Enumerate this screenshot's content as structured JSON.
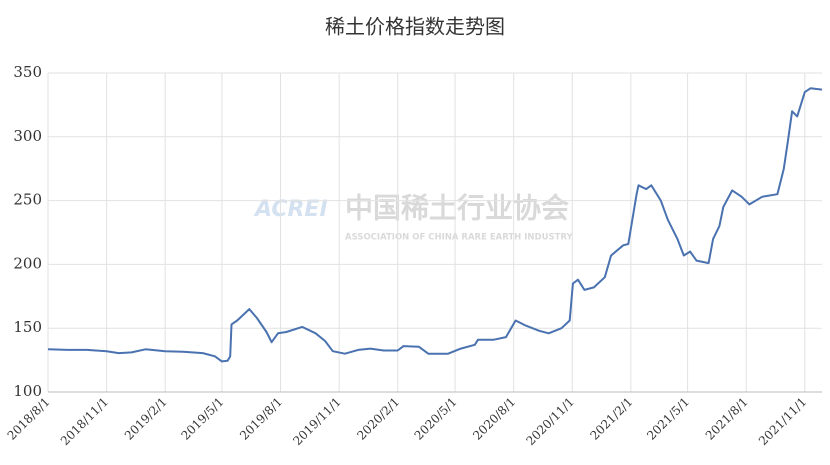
{
  "chart_data": {
    "type": "line",
    "title": "稀土价格指数走势图",
    "watermark": {
      "logo": "ACREI",
      "name": "中国稀土行业协会",
      "english": "ASSOCIATION OF CHINA RARE EARTH INDUSTRY"
    },
    "x": [
      "2018/8/1",
      "2018/9/1",
      "2018/10/1",
      "2018/11/1",
      "2018/11/20",
      "2018/12/10",
      "2019/1/1",
      "2019/2/1",
      "2019/3/1",
      "2019/4/1",
      "2019/4/20",
      "2019/5/1",
      "2019/5/10",
      "2019/5/14",
      "2019/5/16",
      "2019/5/25",
      "2019/6/13",
      "2019/6/25",
      "2019/7/10",
      "2019/7/18",
      "2019/7/28",
      "2019/8/10",
      "2019/9/4",
      "2019/9/25",
      "2019/10/10",
      "2019/10/22",
      "2019/11/10",
      "2019/12/1",
      "2019/12/20",
      "2020/1/10",
      "2020/2/1",
      "2020/2/10",
      "2020/3/5",
      "2020/3/20",
      "2020/4/20",
      "2020/5/10",
      "2020/6/1",
      "2020/6/6",
      "2020/7/1",
      "2020/7/20",
      "2020/8/4",
      "2020/8/20",
      "2020/9/10",
      "2020/9/25",
      "2020/10/15",
      "2020/10/28",
      "2020/11/2",
      "2020/11/10",
      "2020/11/20",
      "2020/12/5",
      "2020/12/22",
      "2021/1/1",
      "2021/1/20",
      "2021/1/28",
      "2021/2/10",
      "2021/2/13",
      "2021/2/25",
      "2021/3/5",
      "2021/3/20",
      "2021/3/31",
      "2021/4/15",
      "2021/4/25",
      "2021/5/5",
      "2021/5/15",
      "2021/6/3",
      "2021/6/10",
      "2021/6/20",
      "2021/6/26",
      "2021/7/10",
      "2021/7/25",
      "2021/8/6",
      "2021/8/26",
      "2021/9/19",
      "2021/9/29",
      "2021/10/5",
      "2021/10/12",
      "2021/10/20",
      "2021/11/1",
      "2021/11/10",
      "2021/11/28"
    ],
    "series": [
      {
        "color": "#4a72b0",
        "values": [
          133.5,
          133,
          133,
          132,
          130.5,
          131,
          133.5,
          132,
          131.5,
          130.5,
          128,
          124,
          124.5,
          128,
          153,
          156,
          165,
          158,
          147,
          139,
          146,
          147,
          151,
          146,
          140,
          132,
          130,
          133,
          134,
          132.5,
          132.5,
          136,
          135.5,
          130,
          130,
          134,
          137,
          141,
          141,
          143,
          156,
          152,
          148,
          146,
          150,
          156,
          185,
          188,
          180,
          182,
          190,
          207,
          215,
          216,
          255,
          262,
          259,
          262,
          250,
          235,
          220,
          207,
          210,
          203,
          201,
          220,
          230,
          245,
          258,
          253,
          247,
          253,
          255,
          275,
          295,
          320,
          316,
          335,
          338,
          337
        ]
      }
    ],
    "xlim": [
      "2018/8/1",
      "2021/11/28"
    ],
    "xticks": [
      "2018/8/1",
      "2018/11/1",
      "2019/2/1",
      "2019/5/1",
      "2019/8/1",
      "2019/11/1",
      "2020/2/1",
      "2020/5/1",
      "2020/8/1",
      "2020/11/1",
      "2021/2/1",
      "2021/5/1",
      "2021/8/1",
      "2021/11/1"
    ],
    "ylim": [
      100,
      350
    ],
    "yticks": [
      100,
      150,
      200,
      250,
      300,
      350
    ],
    "grid": true
  }
}
